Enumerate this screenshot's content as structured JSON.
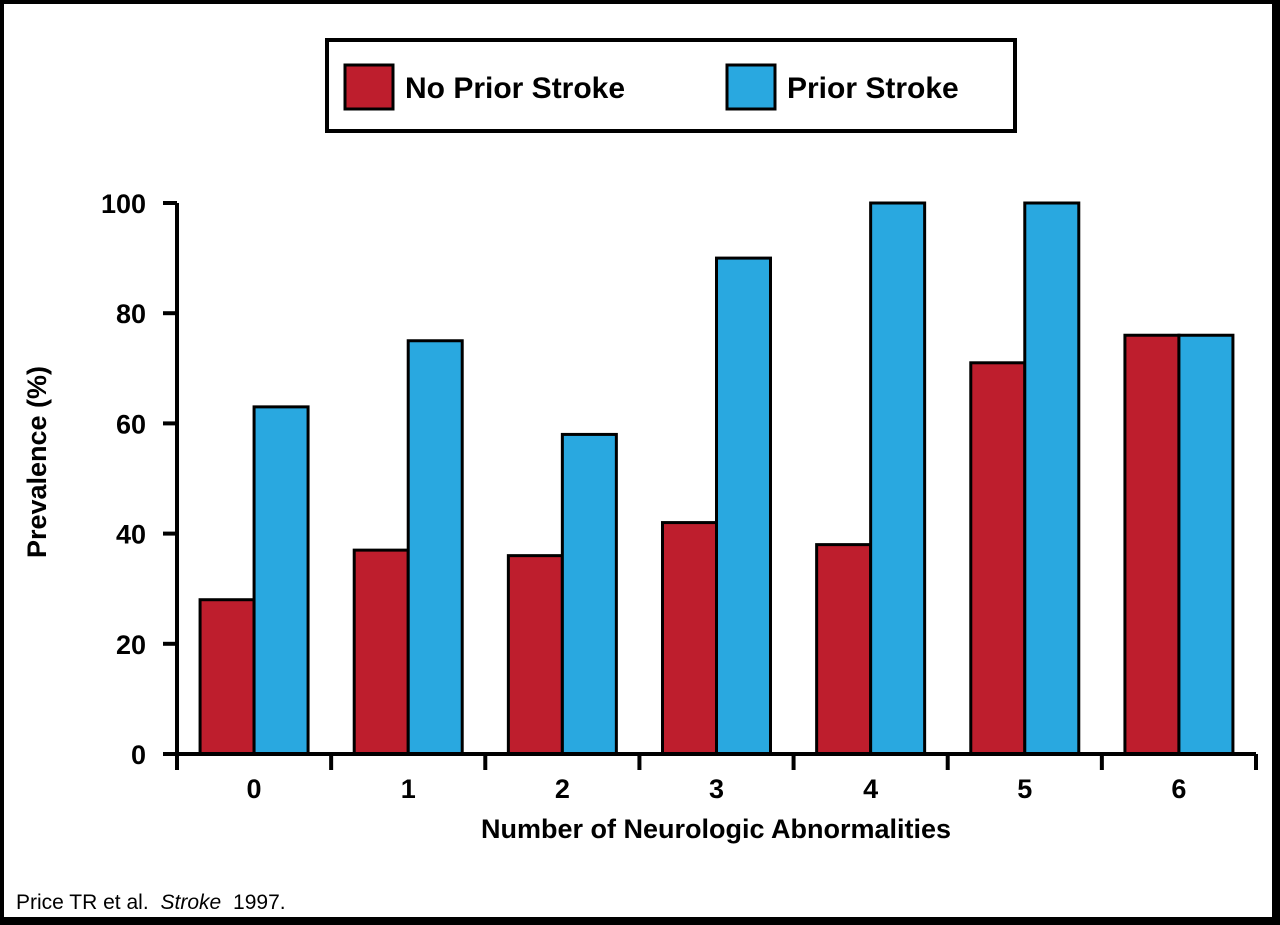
{
  "chart_data": {
    "type": "bar",
    "categories": [
      "0",
      "1",
      "2",
      "3",
      "4",
      "5",
      "6"
    ],
    "series": [
      {
        "name": "No Prior Stroke",
        "color": "#be1e2d",
        "values": [
          28,
          37,
          36,
          42,
          38,
          71,
          76
        ]
      },
      {
        "name": "Prior Stroke",
        "color": "#29a8e0",
        "values": [
          63,
          75,
          58,
          90,
          100,
          100,
          76
        ]
      }
    ],
    "xlabel": "Number of Neurologic Abnormalities",
    "ylabel": "Prevalence (%)",
    "ylim": [
      0,
      100
    ],
    "yticks": [
      "0",
      "20",
      "40",
      "60",
      "80",
      "100"
    ],
    "grid": false,
    "legend_position": "top-center"
  },
  "citation": {
    "authors": "Price TR et al.",
    "journal": "Stroke",
    "year": "1997."
  }
}
